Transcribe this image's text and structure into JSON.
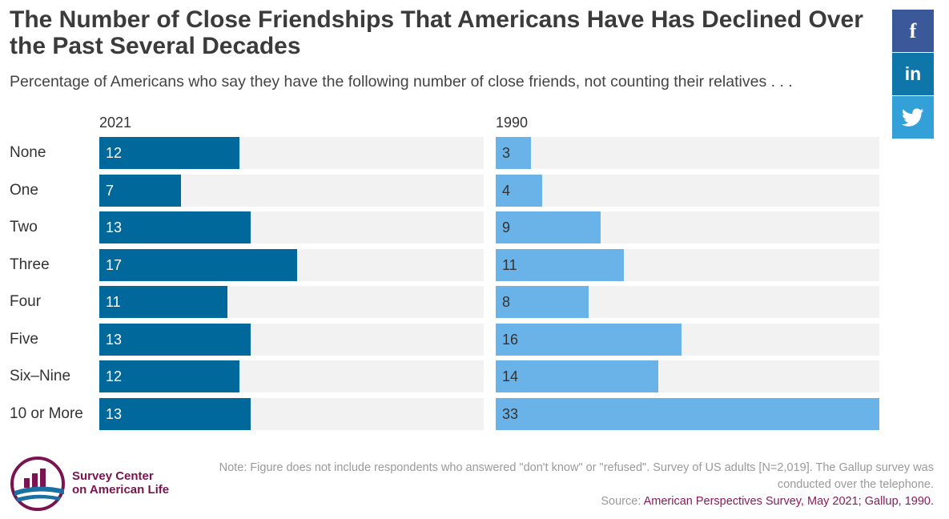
{
  "title": "The Number of Close Friendships That Americans Have Has Declined Over the Past Several Decades",
  "subtitle": "Percentage of Americans who say they have the following number of close friends, not counting their relatives . . .",
  "share": {
    "facebook": {
      "label": "f",
      "icon": "facebook-icon"
    },
    "linkedin": {
      "label": "in",
      "icon": "linkedin-icon"
    },
    "twitter": {
      "icon": "twitter-icon"
    }
  },
  "colors": {
    "bar_2021": "#00689b",
    "bar_1990": "#6ab3e8",
    "track": "#f2f2f2",
    "brand": "#7a1450"
  },
  "chart_data": {
    "type": "bar",
    "orientation": "horizontal",
    "categories": [
      "None",
      "One",
      "Two",
      "Three",
      "Four",
      "Five",
      "Six–Nine",
      "10 or More"
    ],
    "series": [
      {
        "name": "2021",
        "values": [
          12,
          7,
          13,
          17,
          11,
          13,
          12,
          13
        ]
      },
      {
        "name": "1990",
        "values": [
          3,
          4,
          9,
          11,
          8,
          16,
          14,
          33
        ]
      }
    ],
    "xlim": [
      0,
      33
    ],
    "grid": false,
    "legend": "none"
  },
  "logo": {
    "line1": "Survey Center",
    "line2": "on American Life"
  },
  "note": "Note: Figure does not include respondents who answered \"don't know\" or \"refused\". Survey of US adults [N=2,019]. The Gallup survey was conducted over the telephone.",
  "source": {
    "prefix": "Source: ",
    "text": "American Perspectives Survey, May 2021; Gallup, 1990."
  }
}
